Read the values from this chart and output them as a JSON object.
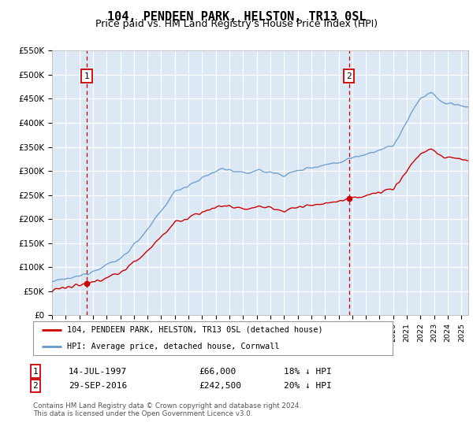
{
  "title": "104, PENDEEN PARK, HELSTON, TR13 0SL",
  "subtitle": "Price paid vs. HM Land Registry's House Price Index (HPI)",
  "background_color": "#dce9f5",
  "ylim": [
    0,
    550000
  ],
  "yticks": [
    0,
    50000,
    100000,
    150000,
    200000,
    250000,
    300000,
    350000,
    400000,
    450000,
    500000,
    550000
  ],
  "ytick_labels": [
    "£0",
    "£50K",
    "£100K",
    "£150K",
    "£200K",
    "£250K",
    "£300K",
    "£350K",
    "£400K",
    "£450K",
    "£500K",
    "£550K"
  ],
  "xlim_start": 1995.0,
  "xlim_end": 2025.5,
  "sale1_x": 1997.54,
  "sale1_y": 66000,
  "sale1_label": "1",
  "sale2_x": 2016.75,
  "sale2_y": 242500,
  "sale2_label": "2",
  "sale_color": "#cc0000",
  "hpi_color": "#6699cc",
  "vline_color": "#cc0000",
  "legend_label_red": "104, PENDEEN PARK, HELSTON, TR13 0SL (detached house)",
  "legend_label_blue": "HPI: Average price, detached house, Cornwall",
  "annotation1_date": "14-JUL-1997",
  "annotation1_price": "£66,000",
  "annotation1_hpi": "18% ↓ HPI",
  "annotation2_date": "29-SEP-2016",
  "annotation2_price": "£242,500",
  "annotation2_hpi": "20% ↓ HPI",
  "footnote": "Contains HM Land Registry data © Crown copyright and database right 2024.\nThis data is licensed under the Open Government Licence v3.0.",
  "grid_color": "#ffffff",
  "title_fontsize": 11,
  "subtitle_fontsize": 9
}
